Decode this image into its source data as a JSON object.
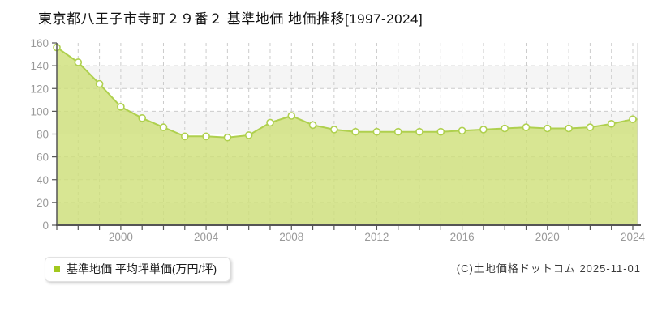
{
  "title": "東京都八王子市寺町２９番２ 基準地価 地価推移[1997-2024]",
  "legend": {
    "label": "基準地価 平均坪単価(万円/坪)",
    "marker_color": "#a2c81e"
  },
  "footer": {
    "copyright": "(C)土地価格ドットコム 2025-11-01"
  },
  "chart_data": {
    "type": "area",
    "title": "東京都八王子市寺町２９番２ 基準地価 地価推移[1997-2024]",
    "xlabel": "",
    "ylabel": "平均坪単価(万円/坪)",
    "x": [
      1997,
      1998,
      1999,
      2000,
      2001,
      2002,
      2003,
      2004,
      2005,
      2006,
      2007,
      2008,
      2009,
      2010,
      2011,
      2012,
      2013,
      2014,
      2015,
      2016,
      2017,
      2018,
      2019,
      2020,
      2021,
      2022,
      2023,
      2024
    ],
    "series": [
      {
        "name": "基準地価 平均坪単価(万円/坪)",
        "values": [
          156,
          143,
          124,
          104,
          94,
          86,
          78,
          78,
          77,
          79,
          90,
          96,
          88,
          84,
          82,
          82,
          82,
          82,
          82,
          83,
          84,
          85,
          86,
          85,
          85,
          86,
          89,
          93
        ]
      }
    ],
    "ylim": [
      0,
      160
    ],
    "yticks": [
      0,
      20,
      40,
      60,
      80,
      100,
      120,
      140,
      160
    ],
    "xtick_labels": [
      2000,
      2004,
      2008,
      2012,
      2016,
      2020,
      2024
    ],
    "grid": "dashed",
    "legend_position": "bottom-left",
    "colors": {
      "area_fill": "rgba(206,224,120,0.80)",
      "line": "#afd04e",
      "marker_fill": "#ffffff",
      "marker_stroke": "#afd04e",
      "grid": "#cccccc",
      "band_alt": "#f5f5f5",
      "band": "#ffffff",
      "axis": "#555555",
      "tick_label": "#999999",
      "plot_right_border": "#cccccc"
    }
  }
}
